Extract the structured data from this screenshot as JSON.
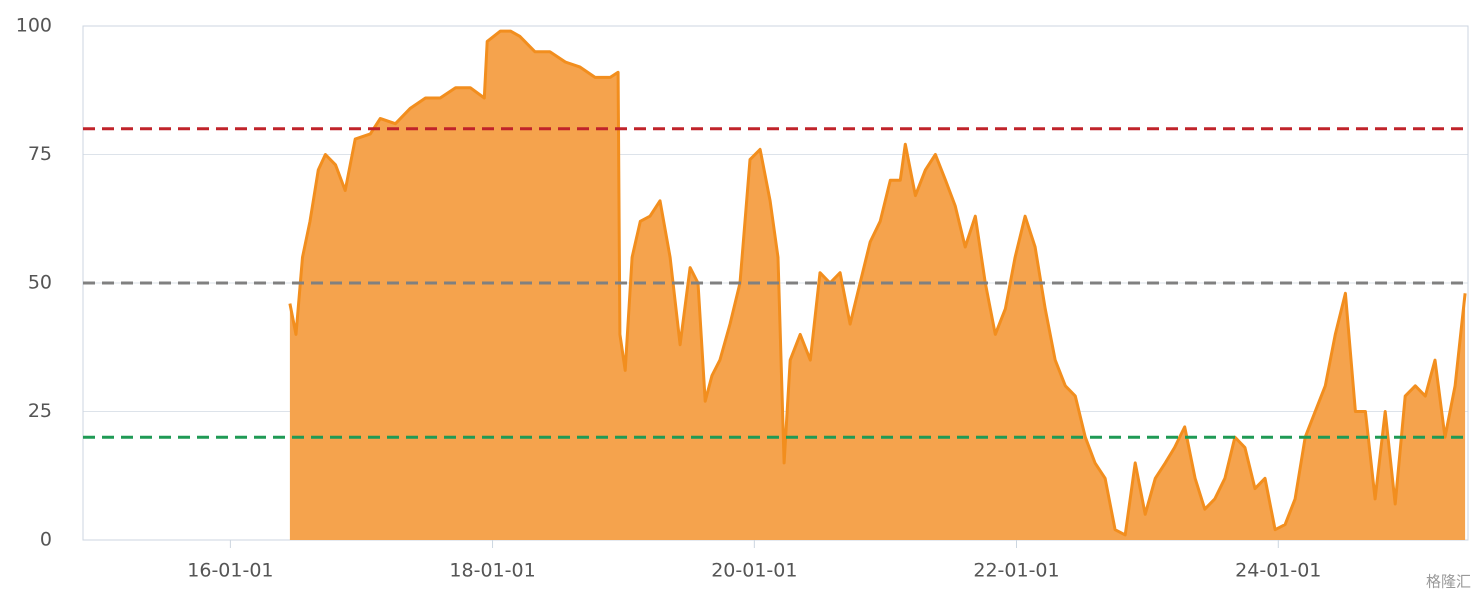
{
  "chart_data": {
    "type": "area",
    "x": [
      "16-06-15",
      "16-07-02",
      "16-07-20",
      "16-08-10",
      "16-09-02",
      "16-09-22",
      "16-10-20",
      "16-11-16",
      "16-12-14",
      "17-01-25",
      "17-02-22",
      "17-04-05",
      "17-05-17",
      "17-06-28",
      "17-08-08",
      "17-09-20",
      "17-10-31",
      "17-12-09",
      "17-12-17",
      "18-01-23",
      "18-02-20",
      "18-03-18",
      "18-04-29",
      "18-06-10",
      "18-07-23",
      "18-09-02",
      "18-10-14",
      "18-11-25",
      "18-12-17",
      "18-12-22",
      "19-01-06",
      "19-01-25",
      "19-02-17",
      "19-03-16",
      "19-04-13",
      "19-05-11",
      "19-06-08",
      "19-07-06",
      "19-07-28",
      "19-08-17",
      "19-09-05",
      "19-09-27",
      "19-10-25",
      "19-11-22",
      "19-12-20",
      "20-01-17",
      "20-02-14",
      "20-03-07",
      "20-03-24",
      "20-04-10",
      "20-05-08",
      "20-06-05",
      "20-07-02",
      "20-07-30",
      "20-08-27",
      "20-09-24",
      "20-10-22",
      "20-11-19",
      "20-12-17",
      "21-01-14",
      "21-02-11",
      "21-02-25",
      "21-03-25",
      "21-04-22",
      "21-05-20",
      "21-06-17",
      "21-07-14",
      "21-08-11",
      "21-09-08",
      "21-10-06",
      "21-11-03",
      "21-12-01",
      "21-12-28",
      "22-01-25",
      "22-02-22",
      "22-03-22",
      "22-04-19",
      "22-05-17",
      "22-06-14",
      "22-07-12",
      "22-08-08",
      "22-09-05",
      "22-10-03",
      "22-10-31",
      "22-11-28",
      "22-12-26",
      "23-01-23",
      "23-02-20",
      "23-03-18",
      "23-04-15",
      "23-05-14",
      "23-06-10",
      "23-07-08",
      "23-08-05",
      "23-09-02",
      "23-09-30",
      "23-10-28",
      "23-11-25",
      "23-12-23",
      "24-01-20",
      "24-02-17",
      "24-03-16",
      "24-04-13",
      "24-05-11",
      "24-06-08",
      "24-07-06",
      "24-08-03",
      "24-08-31",
      "24-09-27",
      "24-10-25",
      "24-11-22",
      "24-12-20",
      "25-01-17",
      "25-02-14",
      "25-03-13",
      "25-04-10",
      "25-05-08",
      "25-06-05"
    ],
    "series": [
      {
        "color": "#f28e1e",
        "fill": "#f5a34d",
        "values": [
          46,
          40,
          55,
          62,
          72,
          75,
          73,
          68,
          78,
          79,
          82,
          81,
          84,
          86,
          86,
          88,
          88,
          86,
          97,
          99,
          99,
          98,
          95,
          95,
          93,
          92,
          90,
          90,
          91,
          40,
          33,
          55,
          62,
          63,
          66,
          55,
          38,
          53,
          50,
          27,
          32,
          35,
          42,
          50,
          74,
          76,
          66,
          55,
          15,
          35,
          40,
          35,
          52,
          50,
          52,
          42,
          50,
          58,
          62,
          70,
          70,
          77,
          67,
          72,
          75,
          70,
          65,
          57,
          63,
          50,
          40,
          45,
          55,
          63,
          57,
          45,
          35,
          30,
          28,
          20,
          15,
          12,
          2,
          1,
          15,
          5,
          12,
          15,
          18,
          22,
          12,
          6,
          8,
          12,
          20,
          18,
          10,
          12,
          2,
          3,
          8,
          20,
          25,
          30,
          40,
          48,
          25,
          25,
          8,
          25,
          7,
          28,
          30,
          28,
          35,
          20,
          30,
          48
        ]
      }
    ],
    "xlim": [
      "14-11-16",
      "25-06-13"
    ],
    "xticks": [
      "16-01-01",
      "18-01-01",
      "20-01-01",
      "22-01-01",
      "24-01-01"
    ],
    "ylim": [
      0,
      100
    ],
    "yticks": [
      0,
      25,
      50,
      75,
      100
    ],
    "grid": true,
    "ref_lines": [
      {
        "value": 80,
        "color": "#c0232a"
      },
      {
        "value": 50,
        "color": "#808080"
      },
      {
        "value": 20,
        "color": "#1f9a55"
      }
    ],
    "watermark": "格隆汇"
  }
}
